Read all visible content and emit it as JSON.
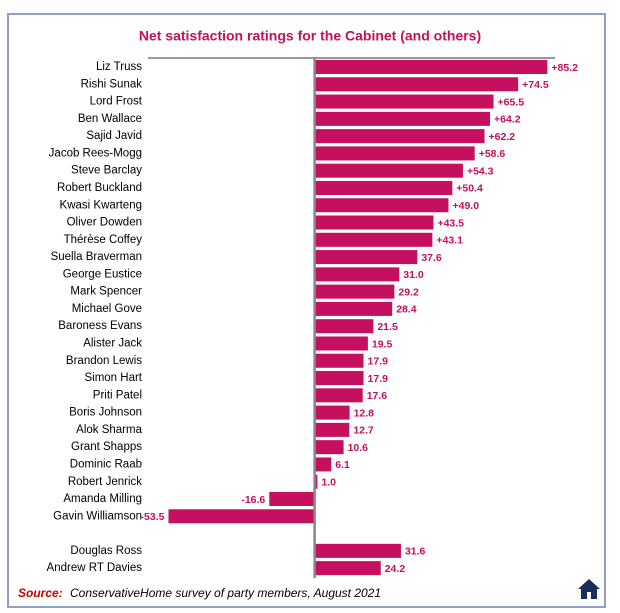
{
  "chart_data": {
    "type": "bar",
    "orientation": "horizontal",
    "title": "Net satisfaction ratings for the Cabinet (and others)",
    "categories": [
      "Liz Truss",
      "Rishi Sunak",
      "Lord Frost",
      "Ben Wallace",
      "Sajid Javid",
      "Jacob Rees-Mogg",
      "Steve Barclay",
      "Robert Buckland",
      "Kwasi Kwarteng",
      "Oliver Dowden",
      "Thérèse Coffey",
      "Suella Braverman",
      "George Eustice",
      "Mark Spencer",
      "Michael Gove",
      "Baroness Evans",
      "Alister Jack",
      "Brandon Lewis",
      "Simon Hart",
      "Priti Patel",
      "Boris Johnson",
      "Alok Sharma",
      "Grant Shapps",
      "Dominic Raab",
      "Robert Jenrick",
      "Amanda Milling",
      "Gavin Williamson",
      null,
      "Douglas Ross",
      "Andrew RT Davies"
    ],
    "values": [
      85.2,
      74.5,
      65.5,
      64.2,
      62.2,
      58.6,
      54.3,
      50.4,
      49.0,
      43.5,
      43.1,
      37.6,
      31.0,
      29.2,
      28.4,
      21.5,
      19.5,
      17.9,
      17.9,
      17.6,
      12.8,
      12.7,
      10.6,
      6.1,
      1.0,
      -16.6,
      -53.5,
      null,
      31.6,
      24.2
    ],
    "value_labels": [
      "+85.2",
      "+74.5",
      "+65.5",
      "+64.2",
      "+62.2",
      "+58.6",
      "+54.3",
      "+50.4",
      "+49.0",
      "+43.5",
      "+43.1",
      "37.6",
      "31.0",
      "29.2",
      "28.4",
      "21.5",
      "19.5",
      "17.9",
      "17.9",
      "17.6",
      "12.8",
      "12.7",
      "10.6",
      "6.1",
      "1.0",
      "-16.6",
      "-53.5",
      null,
      "31.6",
      "24.2"
    ],
    "color": "#c4105f",
    "xlim": [
      -61,
      88
    ],
    "source_label": "Source:",
    "source": "ConservativeHome survey of party members, August 2021"
  }
}
